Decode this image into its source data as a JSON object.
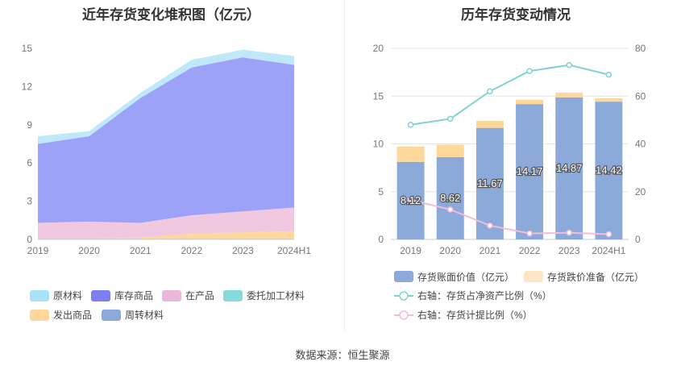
{
  "source_label": "数据来源：恒生聚源",
  "chart_data": [
    {
      "type": "area",
      "stacked": true,
      "title": "近年存货变化堆积图（亿元）",
      "categories": [
        "2019",
        "2020",
        "2021",
        "2022",
        "2023",
        "2024H1"
      ],
      "ylim": [
        0,
        15
      ],
      "yticks": [
        "0",
        "3",
        "6",
        "9",
        "12",
        "15"
      ],
      "grid": false,
      "legend_position": "bottom",
      "series": [
        {
          "name": "周转材料",
          "color": "#8caad9",
          "values": [
            0.05,
            0.05,
            0.05,
            0.05,
            0.05,
            0.05
          ]
        },
        {
          "name": "发出商品",
          "color": "#fdd89a",
          "values": [
            0.0,
            0.0,
            0.1,
            0.4,
            0.5,
            0.6
          ]
        },
        {
          "name": "委托加工材料",
          "color": "#8ad8d8",
          "values": [
            0.0,
            0.0,
            0.0,
            0.0,
            0.0,
            0.0
          ]
        },
        {
          "name": "在产品",
          "color": "#f0c8df",
          "values": [
            1.25,
            1.35,
            1.15,
            1.45,
            1.65,
            1.85
          ]
        },
        {
          "name": "库存商品",
          "color": "#9ba2f7",
          "values": [
            6.2,
            6.7,
            9.8,
            11.6,
            12.1,
            11.2
          ]
        },
        {
          "name": "原材料",
          "color": "#bfe8fa",
          "values": [
            0.6,
            0.4,
            0.4,
            0.6,
            0.6,
            0.7
          ]
        }
      ],
      "legend_order": [
        "原材料",
        "库存商品",
        "在产品",
        "委托加工材料",
        "发出商品",
        "周转材料"
      ],
      "legend_swatch_colors": [
        "#a9e2f8",
        "#7b7ff2",
        "#e9b8d9",
        "#86dada",
        "#fdd89a",
        "#8caad9"
      ]
    },
    {
      "type": "bar",
      "title": "历年存货变动情况",
      "categories": [
        "2019",
        "2020",
        "2021",
        "2022",
        "2023",
        "2024H1"
      ],
      "ylim": [
        0,
        20
      ],
      "yticks": [
        "0",
        "5",
        "10",
        "15",
        "20"
      ],
      "y2lim": [
        0,
        80
      ],
      "y2ticks": [
        "0",
        "20",
        "40",
        "60",
        "80"
      ],
      "grid": true,
      "legend_position": "bottom",
      "series": [
        {
          "name": "存货账面价值（亿元）",
          "type": "bar",
          "axis": "left",
          "color": "#8caad9",
          "values": [
            8.12,
            8.62,
            11.67,
            14.17,
            14.87,
            14.42
          ],
          "labels": [
            "8.12",
            "8.62",
            "11.67",
            "14.17",
            "14.87",
            "14.42"
          ]
        },
        {
          "name": "存货跌价准备（亿元）",
          "type": "bar",
          "axis": "left",
          "color": "#fdd89a",
          "legend_color": "#fde6c4",
          "values": [
            1.6,
            1.3,
            0.75,
            0.45,
            0.5,
            0.35
          ]
        },
        {
          "name": "右轴：存货占净资产比例（%）",
          "type": "line",
          "axis": "right",
          "color": "#7fd3d6",
          "values": [
            48.0,
            50.5,
            62.0,
            70.5,
            73.0,
            69.0
          ]
        },
        {
          "name": "右轴：存货计提比例（%）",
          "type": "line",
          "axis": "right",
          "color": "#f3bcd8",
          "values": [
            16.5,
            12.5,
            5.8,
            2.5,
            2.8,
            2.2
          ]
        }
      ]
    }
  ]
}
